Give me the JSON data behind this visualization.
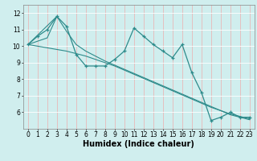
{
  "title": "",
  "xlabel": "Humidex (Indice chaleur)",
  "x": [
    0,
    1,
    2,
    3,
    4,
    5,
    6,
    7,
    8,
    9,
    10,
    11,
    12,
    13,
    14,
    15,
    16,
    17,
    18,
    19,
    20,
    21,
    22,
    23
  ],
  "line1": [
    10.1,
    10.6,
    11.0,
    11.8,
    11.2,
    9.5,
    8.8,
    8.8,
    8.8,
    9.2,
    9.7,
    11.1,
    10.6,
    10.1,
    9.7,
    9.3,
    10.1,
    8.4,
    7.2,
    5.5,
    5.7,
    6.0,
    5.7,
    5.7
  ],
  "line_straight1": [
    10.1,
    10.0,
    9.9,
    9.8,
    9.7,
    9.55,
    9.4,
    9.2,
    9.0,
    8.8,
    8.55,
    8.3,
    8.05,
    7.8,
    7.55,
    7.3,
    7.05,
    6.8,
    6.55,
    6.3,
    6.1,
    5.9,
    5.75,
    5.6
  ],
  "line_straight2": [
    10.1,
    10.3,
    10.5,
    11.8,
    10.9,
    10.1,
    9.7,
    9.4,
    9.1,
    8.85,
    8.6,
    8.35,
    8.1,
    7.85,
    7.6,
    7.35,
    7.1,
    6.85,
    6.6,
    6.35,
    6.1,
    5.85,
    5.7,
    5.55
  ],
  "line_color": "#2e8b8b",
  "bg_color": "#d0eeee",
  "grid_color_v": "#e8b8b8",
  "grid_color_h": "#ffffff",
  "ylim": [
    5.0,
    12.5
  ],
  "yticks": [
    6,
    7,
    8,
    9,
    10,
    11,
    12
  ],
  "xlim": [
    -0.5,
    23.5
  ],
  "label_fontsize": 7,
  "tick_fontsize": 5.5
}
